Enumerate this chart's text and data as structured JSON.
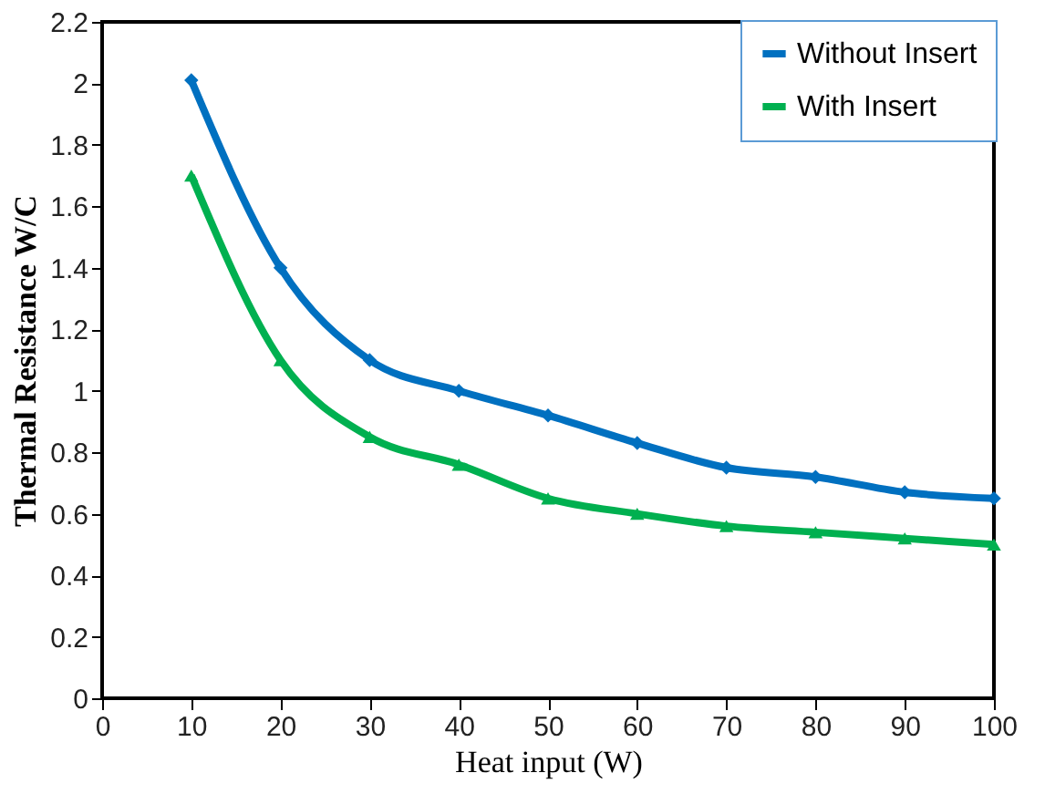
{
  "chart_data": {
    "type": "line",
    "xlabel": "Heat input (W)",
    "ylabel": "Thermal  Resistance W/C",
    "x": [
      10,
      20,
      30,
      40,
      50,
      60,
      70,
      80,
      90,
      100
    ],
    "series": [
      {
        "name": "Without Insert",
        "color": "#0070c0",
        "marker": "diamond",
        "values": [
          2.01,
          1.4,
          1.1,
          1.0,
          0.92,
          0.83,
          0.75,
          0.72,
          0.67,
          0.65
        ]
      },
      {
        "name": "With Insert",
        "color": "#00b050",
        "marker": "triangle",
        "values": [
          1.7,
          1.1,
          0.85,
          0.76,
          0.65,
          0.6,
          0.56,
          0.54,
          0.52,
          0.5
        ]
      }
    ],
    "xlim": [
      0,
      100
    ],
    "xticks": [
      0,
      10,
      20,
      30,
      40,
      50,
      60,
      70,
      80,
      90,
      100
    ],
    "ylim": [
      0,
      2.2
    ],
    "yticks": [
      0,
      0.2,
      0.4,
      0.6,
      0.8,
      1,
      1.2,
      1.4,
      1.6,
      1.8,
      2,
      2.2
    ],
    "grid": false,
    "legend": "top right"
  }
}
